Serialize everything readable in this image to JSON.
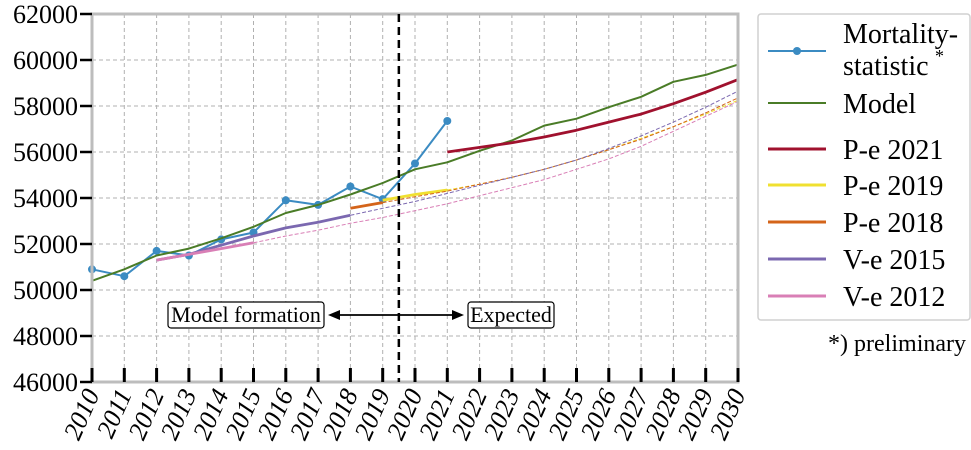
{
  "chart_data": {
    "type": "line",
    "xlim": [
      2010,
      2030
    ],
    "ylim": [
      46000,
      62000
    ],
    "grid": true,
    "x_ticks": [
      2010,
      2011,
      2012,
      2013,
      2014,
      2015,
      2016,
      2017,
      2018,
      2019,
      2020,
      2021,
      2022,
      2023,
      2024,
      2025,
      2026,
      2027,
      2028,
      2029,
      2030
    ],
    "y_ticks": [
      46000,
      48000,
      50000,
      52000,
      54000,
      56000,
      58000,
      60000,
      62000
    ],
    "divider_x": 2019.5,
    "annotations": {
      "left": "Model formation",
      "right": "Expected"
    },
    "legend_position": "right",
    "footnote": "*) preliminary",
    "series": [
      {
        "name": "Mortality-statistic",
        "name_line1": "Mortality-",
        "name_line2": "statistic",
        "name_mark": "*",
        "color": "#3b8bc2",
        "markers": true,
        "x": [
          2010,
          2011,
          2012,
          2013,
          2014,
          2015,
          2016,
          2017,
          2018,
          2019,
          2020,
          2021
        ],
        "values": [
          50900,
          50600,
          51700,
          51500,
          52200,
          52500,
          53900,
          53700,
          54500,
          53950,
          55500,
          57350
        ]
      },
      {
        "name": "Model",
        "color": "#4a7c27",
        "x": [
          2010,
          2011,
          2012,
          2013,
          2014,
          2015,
          2016,
          2017,
          2018,
          2019,
          2020,
          2021,
          2022,
          2023,
          2024,
          2025,
          2026,
          2027,
          2028,
          2029,
          2030
        ],
        "values": [
          50400,
          50900,
          51500,
          51800,
          52250,
          52750,
          53350,
          53700,
          54150,
          54650,
          55250,
          55550,
          56050,
          56500,
          57150,
          57450,
          57950,
          58400,
          59050,
          59350,
          59800
        ]
      },
      {
        "name": "P-e 2021",
        "color": "#a0112e",
        "x": [
          2021,
          2022,
          2023,
          2024,
          2025,
          2026,
          2027,
          2028,
          2029,
          2030
        ],
        "values": [
          56000,
          56200,
          56400,
          56650,
          56950,
          57300,
          57650,
          58100,
          58600,
          59150
        ],
        "dashed_after": null
      },
      {
        "name": "P-e 2019",
        "color": "#f0e030",
        "x": [
          2019,
          2020,
          2021,
          2022,
          2023,
          2024,
          2025,
          2026,
          2027,
          2028,
          2029,
          2030
        ],
        "values": [
          53900,
          54150,
          54350,
          54600,
          54900,
          55250,
          55650,
          56100,
          56600,
          57100,
          57650,
          58250
        ],
        "dashed_after": 2021
      },
      {
        "name": "P-e 2018",
        "color": "#d4641a",
        "x": [
          2018,
          2019,
          2020,
          2021,
          2022,
          2023,
          2024,
          2025,
          2026,
          2027,
          2028,
          2029,
          2030
        ],
        "values": [
          53550,
          53800,
          54050,
          54300,
          54600,
          54900,
          55250,
          55650,
          56100,
          56550,
          57100,
          57700,
          58350
        ],
        "dashed_after": 2019
      },
      {
        "name": "V-e 2015",
        "color": "#7b68b0",
        "x": [
          2012,
          2013,
          2014,
          2015,
          2016,
          2017,
          2018,
          2019,
          2020,
          2021,
          2022,
          2023,
          2024,
          2025,
          2026,
          2027,
          2028,
          2029,
          2030
        ],
        "values": [
          51300,
          51550,
          51950,
          52350,
          52700,
          52950,
          53250,
          53550,
          53850,
          54200,
          54550,
          54900,
          55250,
          55650,
          56150,
          56700,
          57300,
          57950,
          58650
        ],
        "dashed_after": 2018
      },
      {
        "name": "V-e 2012",
        "color": "#d97fb6",
        "x": [
          2012,
          2013,
          2014,
          2015,
          2016,
          2017,
          2018,
          2019,
          2020,
          2021,
          2022,
          2023,
          2024,
          2025,
          2026,
          2027,
          2028,
          2029,
          2030
        ],
        "values": [
          51300,
          51550,
          51800,
          52050,
          52350,
          52600,
          52900,
          53150,
          53450,
          53750,
          54100,
          54450,
          54800,
          55250,
          55700,
          56250,
          56900,
          57550,
          58200
        ],
        "dashed_after": 2015
      }
    ]
  }
}
